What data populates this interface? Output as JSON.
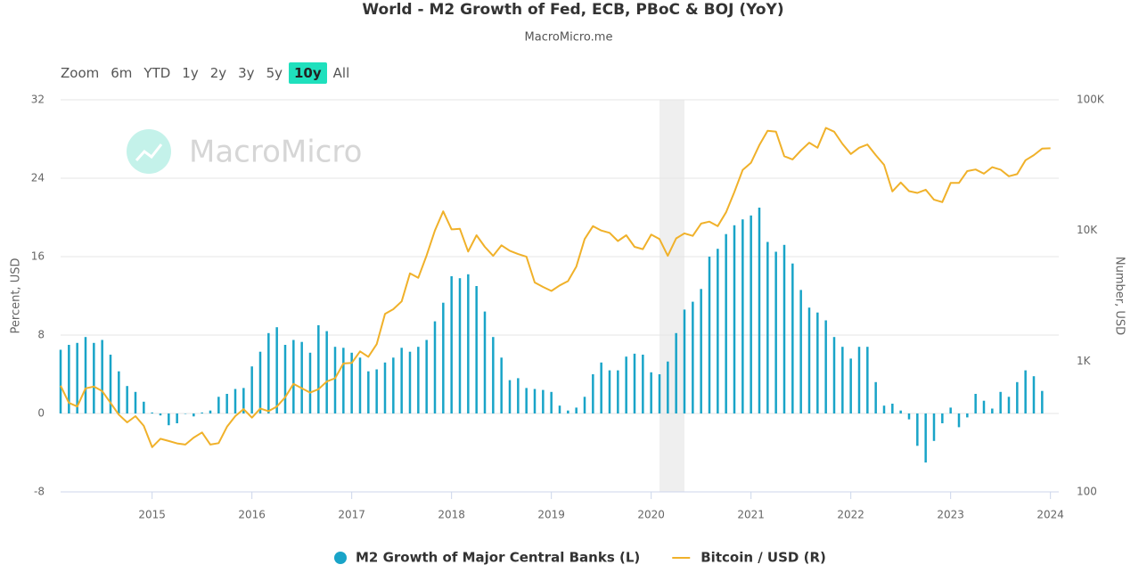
{
  "chart_data": {
    "type": "combo",
    "title": "World - M2 Growth of Fed, ECB, PBoC & BOJ (YoY)",
    "subtitle": "MacroMicro.me",
    "watermark": "MacroMicro",
    "range_selector": {
      "label": "Zoom",
      "buttons": [
        "6m",
        "YTD",
        "1y",
        "2y",
        "3y",
        "5y",
        "10y",
        "All"
      ],
      "selected": 6
    },
    "y_label": "Percent, USD",
    "y2_label": "Number, USD",
    "x": [
      "2014-02",
      "2014-03",
      "2014-04",
      "2014-05",
      "2014-06",
      "2014-07",
      "2014-08",
      "2014-09",
      "2014-10",
      "2014-11",
      "2014-12",
      "2015-01",
      "2015-02",
      "2015-03",
      "2015-04",
      "2015-05",
      "2015-06",
      "2015-07",
      "2015-08",
      "2015-09",
      "2015-10",
      "2015-11",
      "2015-12",
      "2016-01",
      "2016-02",
      "2016-03",
      "2016-04",
      "2016-05",
      "2016-06",
      "2016-07",
      "2016-08",
      "2016-09",
      "2016-10",
      "2016-11",
      "2016-12",
      "2017-01",
      "2017-02",
      "2017-03",
      "2017-04",
      "2017-05",
      "2017-06",
      "2017-07",
      "2017-08",
      "2017-09",
      "2017-10",
      "2017-11",
      "2017-12",
      "2018-01",
      "2018-02",
      "2018-03",
      "2018-04",
      "2018-05",
      "2018-06",
      "2018-07",
      "2018-08",
      "2018-09",
      "2018-10",
      "2018-11",
      "2018-12",
      "2019-01",
      "2019-02",
      "2019-03",
      "2019-04",
      "2019-05",
      "2019-06",
      "2019-07",
      "2019-08",
      "2019-09",
      "2019-10",
      "2019-11",
      "2019-12",
      "2020-01",
      "2020-02",
      "2020-03",
      "2020-04",
      "2020-05",
      "2020-06",
      "2020-07",
      "2020-08",
      "2020-09",
      "2020-10",
      "2020-11",
      "2020-12",
      "2021-01",
      "2021-02",
      "2021-03",
      "2021-04",
      "2021-05",
      "2021-06",
      "2021-07",
      "2021-08",
      "2021-09",
      "2021-10",
      "2021-11",
      "2021-12",
      "2022-01",
      "2022-02",
      "2022-03",
      "2022-04",
      "2022-05",
      "2022-06",
      "2022-07",
      "2022-08",
      "2022-09",
      "2022-10",
      "2022-11",
      "2022-12",
      "2023-01",
      "2023-02",
      "2023-03",
      "2023-04",
      "2023-05",
      "2023-06",
      "2023-07",
      "2023-08",
      "2023-09",
      "2023-10",
      "2023-11",
      "2023-12",
      "2024-01"
    ],
    "series": [
      {
        "name": "M2 Growth of Major Central Banks (L)",
        "type": "bar",
        "color": "#19a4c8",
        "values": [
          6.5,
          7,
          7.2,
          7.8,
          7.2,
          7.5,
          6,
          4.3,
          2.8,
          2.2,
          1.2,
          0.1,
          -0.2,
          -1.2,
          -1,
          0,
          -0.3,
          0.1,
          0.3,
          1.7,
          2,
          2.5,
          2.6,
          4.8,
          6.3,
          8.2,
          8.8,
          7,
          7.5,
          7.3,
          6.2,
          9,
          8.4,
          6.8,
          6.7,
          6.2,
          5.7,
          4.3,
          4.5,
          5.2,
          5.7,
          6.7,
          6.3,
          6.8,
          7.5,
          9.4,
          11.3,
          14,
          13.8,
          14.2,
          13,
          10.4,
          7.8,
          5.7,
          3.4,
          3.6,
          2.6,
          2.5,
          2.4,
          2.2,
          0.8,
          0.3,
          0.6,
          1.7,
          4,
          5.2,
          4.4,
          4.4,
          5.8,
          6.1,
          6,
          4.2,
          4,
          5.3,
          8.2,
          10.6,
          11.4,
          12.7,
          16,
          16.8,
          18.3,
          19.2,
          19.8,
          20.2,
          21,
          17.5,
          16.5,
          17.2,
          15.3,
          12.6,
          10.8,
          10.3,
          9.5,
          7.8,
          6.8,
          5.6,
          6.8,
          6.8,
          3.2,
          0.8,
          1,
          0.3,
          -0.6,
          -3.3,
          -5,
          -2.8,
          -1,
          0.6,
          -1.4,
          -0.4,
          2,
          1.3,
          0.5,
          2.2,
          1.7,
          3.2,
          4.4,
          3.8,
          2.3,
          null
        ]
      },
      {
        "name": "Bitcoin / USD (R)",
        "type": "line",
        "axis": "y2",
        "color": "#f0b12a",
        "values": [
          650,
          480,
          450,
          620,
          640,
          590,
          480,
          390,
          340,
          380,
          320,
          220,
          255,
          245,
          235,
          230,
          260,
          285,
          230,
          236,
          315,
          380,
          430,
          370,
          435,
          415,
          450,
          530,
          670,
          620,
          575,
          610,
          700,
          740,
          960,
          970,
          1190,
          1080,
          1350,
          2300,
          2500,
          2870,
          4700,
          4340,
          6450,
          10000,
          14000,
          10200,
          10300,
          6900,
          9200,
          7500,
          6400,
          7700,
          7000,
          6600,
          6300,
          4000,
          3700,
          3450,
          3800,
          4100,
          5300,
          8600,
          10800,
          10000,
          9600,
          8300,
          9200,
          7500,
          7200,
          9300,
          8600,
          6400,
          8700,
          9500,
          9100,
          11300,
          11700,
          10800,
          13800,
          19700,
          29000,
          33000,
          45000,
          58000,
          57000,
          37000,
          35000,
          41000,
          47000,
          43000,
          61000,
          57000,
          46000,
          38500,
          43000,
          45500,
          37700,
          31800,
          19900,
          23300,
          20000,
          19400,
          20500,
          17200,
          16500,
          23100,
          23100,
          28500,
          29300,
          27200,
          30500,
          29200,
          26000,
          27000,
          34500,
          37700,
          42300,
          42600
        ]
      }
    ],
    "plot_bands": [
      [
        "2020-02",
        "2020-05"
      ]
    ],
    "xlim": [
      "2014-02",
      "2024-02"
    ],
    "xticks": [
      2015,
      2016,
      2017,
      2018,
      2019,
      2020,
      2021,
      2022,
      2023,
      2024
    ],
    "ylim": [
      -8,
      32
    ],
    "yticks": [
      -8,
      0,
      8,
      16,
      24,
      32
    ],
    "y2lim": [
      100,
      100000
    ],
    "y2log": true,
    "y2ticks": [
      100,
      {
        "value": 1000,
        "label": "1K"
      },
      {
        "value": 10000,
        "label": "10K"
      },
      {
        "value": 100000,
        "label": "100K"
      }
    ],
    "grid": true,
    "legend": "bottom"
  }
}
